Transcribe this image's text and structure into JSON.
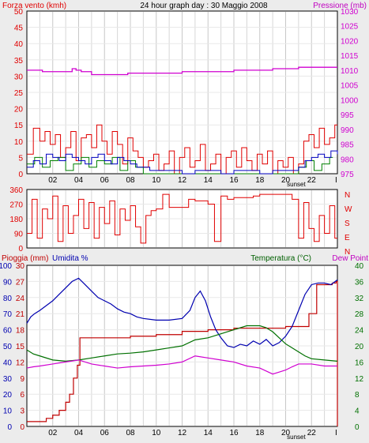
{
  "title": "24 hour graph day : 30 Maggio 2008",
  "colors": {
    "background": "#ececec",
    "plot_bg": "#ffffff",
    "grid_day": "#d6d6d6",
    "grid_night": "#c8c8c8",
    "wind": "#e00000",
    "gust": "#d00000",
    "wind_green": "#008000",
    "wind_blue": "#0000c0",
    "pressure": "#d000d0",
    "direction": "#e00000",
    "rain": "#c00000",
    "humidity": "#0000b0",
    "temperature": "#007000",
    "dewpoint": "#d000d0"
  },
  "x_ticks": [
    "02",
    "04",
    "06",
    "08",
    "10",
    "12",
    "14",
    "16",
    "18",
    "20",
    "22",
    "I"
  ],
  "sunset_label": "sunset",
  "chart_data": [
    {
      "type": "line",
      "title": "24 hour graph day : 30 Maggio 2008",
      "left_label": "Forza vento (kmh)",
      "right_label": "Pressione (mb)",
      "y_left_ticks": [
        "0",
        "5",
        "10",
        "15",
        "20",
        "25",
        "30",
        "35",
        "40",
        "45",
        "50"
      ],
      "y_right_ticks": [
        "975",
        "980",
        "985",
        "990",
        "995",
        "1000",
        "1005",
        "1010",
        "1015",
        "1020",
        "1025",
        "1030"
      ],
      "ylim_left": [
        0,
        50
      ],
      "ylim_right": [
        975,
        1030
      ],
      "xlim": [
        0,
        24
      ],
      "series": [
        {
          "key": "pressure",
          "axis": "right",
          "x": [
            0,
            1.2,
            2.2,
            3.0,
            3.5,
            3.8,
            4.2,
            5.0,
            6.5,
            7.8,
            9.5,
            11.0,
            12.0,
            13.0,
            14.0,
            16.0,
            17.0,
            18.0,
            19.0,
            20.5,
            21.0,
            22.5,
            24.0
          ],
          "y": [
            1010,
            1009.5,
            1009.5,
            1009.5,
            1010.5,
            1010,
            1009.5,
            1008.5,
            1008.5,
            1009,
            1009,
            1009,
            1009.5,
            1009.5,
            1009.5,
            1010,
            1010,
            1010,
            1010.5,
            1010.5,
            1011,
            1011,
            1011
          ]
        },
        {
          "key": "wind",
          "axis": "left",
          "x": [
            0,
            0.5,
            1.0,
            1.4,
            1.8,
            2.2,
            2.6,
            3.0,
            3.4,
            3.8,
            4.2,
            4.6,
            5.0,
            5.4,
            5.8,
            6.2,
            6.6,
            7.0,
            7.4,
            7.8,
            8.2,
            8.6,
            9.0,
            9.4,
            9.8,
            10.2,
            10.6,
            11.0,
            11.4,
            11.8,
            12.2,
            12.6,
            13.0,
            13.4,
            13.8,
            14.2,
            14.6,
            15.0,
            15.4,
            15.8,
            16.2,
            16.6,
            17.0,
            17.4,
            17.8,
            18.2,
            18.6,
            19.0,
            19.4,
            19.8,
            20.2,
            20.6,
            21.0,
            21.4,
            21.8,
            22.2,
            22.6,
            23.0,
            23.4,
            23.8
          ],
          "y": [
            6,
            14,
            10,
            13,
            9,
            12,
            5,
            8,
            13,
            4,
            11,
            12,
            8,
            15,
            10,
            6,
            13,
            9,
            3,
            11,
            7,
            5,
            2,
            4,
            6,
            1,
            3,
            7,
            0,
            5,
            8,
            2,
            4,
            9,
            1,
            3,
            6,
            0,
            5,
            7,
            2,
            8,
            4,
            1,
            6,
            3,
            7,
            0,
            4,
            2,
            5,
            0,
            3,
            10,
            12,
            8,
            14,
            9,
            11,
            15
          ]
        },
        {
          "key": "wind_green",
          "axis": "left",
          "x": [
            0,
            0.6,
            1.2,
            1.8,
            2.4,
            3.0,
            3.6,
            4.2,
            4.8,
            5.4,
            6.0,
            6.6,
            7.2,
            7.8,
            8.4,
            9.0,
            10.0,
            14.0,
            16.0,
            20.0,
            21.0,
            21.6,
            22.2,
            22.8,
            23.4
          ],
          "y": [
            3,
            5,
            2,
            4,
            5,
            1,
            3,
            5,
            2,
            4,
            3,
            5,
            1,
            4,
            2,
            0,
            0,
            0,
            0,
            0,
            2,
            4,
            1,
            3,
            5
          ]
        },
        {
          "key": "wind_blue",
          "axis": "left",
          "x": [
            0,
            0.5,
            1.0,
            1.5,
            2.0,
            2.5,
            3.0,
            3.5,
            4.0,
            4.5,
            5.0,
            5.5,
            6.0,
            6.5,
            7.0,
            7.5,
            8.0,
            8.5,
            9.0,
            9.5,
            10.0,
            11.0,
            12.0,
            13.0,
            14.0,
            15.0,
            16.0,
            17.0,
            18.0,
            19.0,
            20.0,
            21.0,
            21.5,
            22.0,
            22.5,
            23.0,
            23.5,
            24.0
          ],
          "y": [
            2,
            4,
            3,
            6,
            5,
            4,
            6,
            5,
            4,
            3,
            5,
            6,
            4,
            3,
            5,
            4,
            3,
            2,
            2,
            1,
            1,
            1,
            0,
            1,
            1,
            0,
            1,
            1,
            0,
            1,
            1,
            2,
            4,
            5,
            6,
            5,
            7,
            6
          ]
        }
      ]
    },
    {
      "type": "line",
      "ylim": [
        0,
        360
      ],
      "y_ticks": [
        "0",
        "90",
        "180",
        "270",
        "360"
      ],
      "compass": [
        "N",
        "W",
        "S",
        "E",
        "N"
      ],
      "series": [
        {
          "key": "direction",
          "x": [
            0,
            0.4,
            0.8,
            1.2,
            1.6,
            2.0,
            2.4,
            2.8,
            3.2,
            3.6,
            4.0,
            4.4,
            4.8,
            5.2,
            5.6,
            6.0,
            6.4,
            6.8,
            7.2,
            7.6,
            8.0,
            8.4,
            8.8,
            9.2,
            9.6,
            10.0,
            10.5,
            11.0,
            12.0,
            12.5,
            13.0,
            14.0,
            14.5,
            15.0,
            15.5,
            16.0,
            17.0,
            17.5,
            18.0,
            19.0,
            20.0,
            20.5,
            21.0,
            21.4,
            21.8,
            22.2,
            22.6,
            23.0,
            23.4,
            23.8
          ],
          "y": [
            90,
            300,
            60,
            240,
            180,
            320,
            40,
            260,
            90,
            200,
            300,
            120,
            280,
            60,
            250,
            150,
            290,
            80,
            240,
            170,
            260,
            130,
            30,
            200,
            230,
            240,
            330,
            250,
            250,
            300,
            290,
            270,
            40,
            320,
            300,
            310,
            310,
            320,
            330,
            330,
            330,
            300,
            60,
            280,
            120,
            40,
            200,
            90,
            260,
            60
          ]
        }
      ]
    },
    {
      "type": "line",
      "left_labels": [
        "Pioggia (mm)",
        "Umidita %"
      ],
      "right_labels": [
        "Temperatura (°C)",
        "Dew Point"
      ],
      "y_rain_ticks": [
        "0",
        "3",
        "6",
        "9",
        "12",
        "15",
        "18",
        "21",
        "24",
        "27",
        "30"
      ],
      "y_hum_ticks": [
        "0",
        "10",
        "20",
        "30",
        "40",
        "50",
        "60",
        "70",
        "80",
        "90",
        "100"
      ],
      "y_temp_ticks": [
        "0",
        "4",
        "8",
        "12",
        "16",
        "20",
        "24",
        "28",
        "32",
        "36",
        "40"
      ],
      "ylim_left": [
        0,
        100
      ],
      "ylim_right": [
        0,
        40
      ],
      "series": [
        {
          "key": "rain",
          "axis": "left",
          "x": [
            0,
            1.0,
            1.5,
            2.0,
            2.5,
            3.0,
            3.3,
            3.6,
            3.9,
            4.1,
            4.5,
            6.0,
            8.0,
            10.0,
            12.0,
            14.0,
            16.0,
            18.0,
            19.0,
            20.0,
            21.0,
            21.8,
            22.4,
            23.0,
            23.6,
            23.9,
            24.0
          ],
          "y": [
            3,
            3,
            5,
            7,
            10,
            15,
            20,
            30,
            38,
            55,
            55,
            55,
            56,
            57,
            59,
            60,
            61,
            61,
            61,
            62,
            62,
            70,
            88,
            88,
            89,
            90,
            0
          ]
        },
        {
          "key": "humidity",
          "axis": "left",
          "x": [
            0,
            0.3,
            0.6,
            1.0,
            1.5,
            2.0,
            2.5,
            3.0,
            3.5,
            4.0,
            4.5,
            5.0,
            5.5,
            6.0,
            6.5,
            7.0,
            7.5,
            8.0,
            8.5,
            9.0,
            10.0,
            11.0,
            12.0,
            12.6,
            13.0,
            13.4,
            13.8,
            14.2,
            14.6,
            15.0,
            15.5,
            16.0,
            16.5,
            17.0,
            17.5,
            18.0,
            18.5,
            19.0,
            19.5,
            20.0,
            20.5,
            21.0,
            21.5,
            22.0,
            22.5,
            23.0,
            23.5,
            24.0
          ],
          "y": [
            64,
            68,
            70,
            72,
            75,
            78,
            82,
            86,
            90,
            92,
            88,
            84,
            80,
            78,
            76,
            73,
            71,
            70,
            68,
            67,
            66,
            66,
            67,
            72,
            80,
            84,
            78,
            68,
            60,
            55,
            50,
            49,
            51,
            50,
            53,
            51,
            54,
            50,
            52,
            56,
            62,
            72,
            82,
            88,
            89,
            89,
            88,
            91
          ]
        },
        {
          "key": "temperature",
          "axis": "right",
          "x": [
            0,
            0.5,
            1.0,
            2.0,
            3.0,
            4.0,
            5.0,
            6.0,
            7.0,
            8.0,
            9.0,
            10.0,
            11.0,
            12.0,
            13.0,
            14.0,
            15.0,
            16.0,
            17.0,
            18.0,
            18.5,
            19.0,
            19.5,
            20.0,
            20.5,
            21.0,
            21.5,
            22.0,
            23.0,
            24.0
          ],
          "y": [
            19,
            18,
            17.5,
            16.5,
            16.2,
            16.5,
            17,
            17.5,
            18,
            18.2,
            18.5,
            19,
            19.5,
            20,
            21.5,
            22,
            23,
            24,
            25,
            25,
            24.5,
            23.5,
            22,
            20.5,
            19.5,
            18.5,
            17.5,
            16.8,
            16.5,
            16.2
          ]
        },
        {
          "key": "dewpoint",
          "axis": "right",
          "x": [
            0,
            0.5,
            1.0,
            2.0,
            3.0,
            4.0,
            5.0,
            6.0,
            7.0,
            8.0,
            9.0,
            10.0,
            11.0,
            12.0,
            13.0,
            14.0,
            15.0,
            16.0,
            17.0,
            18.0,
            19.0,
            19.5,
            20.0,
            20.5,
            21.0,
            22.0,
            23.0,
            24.0
          ],
          "y": [
            14.5,
            14.8,
            15,
            15.5,
            16,
            16.5,
            15.5,
            15,
            14.5,
            14.8,
            15,
            15.2,
            15.5,
            16,
            17.5,
            17,
            16.5,
            16,
            15,
            14.5,
            13,
            13.5,
            14,
            14.8,
            15.5,
            15.5,
            15,
            15
          ]
        }
      ]
    }
  ]
}
